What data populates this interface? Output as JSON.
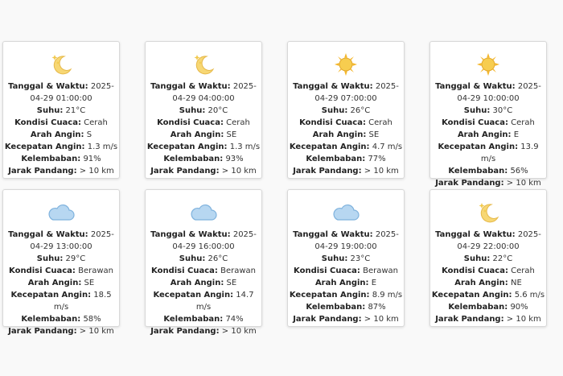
{
  "labels": {
    "datetime": "Tanggal & Waktu:",
    "temp": "Suhu:",
    "condition": "Kondisi Cuaca:",
    "wind_dir": "Arah Angin:",
    "wind_speed": "Kecepatan Angin:",
    "humidity": "Kelembaban:",
    "visibility": "Jarak Pandang:"
  },
  "forecasts": [
    {
      "icon": "moon-icon",
      "datetime": "2025-04-29 01:00:00",
      "temp": "21°C",
      "condition": "Cerah",
      "wind_dir": "S",
      "wind_speed": "1.3 m/s",
      "humidity": "91%",
      "visibility": "> 10 km"
    },
    {
      "icon": "moon-icon",
      "datetime": "2025-04-29 04:00:00",
      "temp": "20°C",
      "condition": "Cerah",
      "wind_dir": "SE",
      "wind_speed": "1.3 m/s",
      "humidity": "93%",
      "visibility": "> 10 km"
    },
    {
      "icon": "sun-icon",
      "datetime": "2025-04-29 07:00:00",
      "temp": "26°C",
      "condition": "Cerah",
      "wind_dir": "SE",
      "wind_speed": "4.7 m/s",
      "humidity": "77%",
      "visibility": "> 10 km"
    },
    {
      "icon": "sun-icon",
      "datetime": "2025-04-29 10:00:00",
      "temp": "30°C",
      "condition": "Cerah",
      "wind_dir": "E",
      "wind_speed": "13.9 m/s",
      "humidity": "56%",
      "visibility": "> 10 km"
    },
    {
      "icon": "cloud-icon",
      "datetime": "2025-04-29 13:00:00",
      "temp": "29°C",
      "condition": "Berawan",
      "wind_dir": "SE",
      "wind_speed": "18.5 m/s",
      "humidity": "58%",
      "visibility": "> 10 km"
    },
    {
      "icon": "cloud-icon",
      "datetime": "2025-04-29 16:00:00",
      "temp": "26°C",
      "condition": "Berawan",
      "wind_dir": "SE",
      "wind_speed": "14.7 m/s",
      "humidity": "74%",
      "visibility": "> 10 km"
    },
    {
      "icon": "cloud-icon",
      "datetime": "2025-04-29 19:00:00",
      "temp": "23°C",
      "condition": "Berawan",
      "wind_dir": "E",
      "wind_speed": "8.9 m/s",
      "humidity": "87%",
      "visibility": "> 10 km"
    },
    {
      "icon": "moon-icon",
      "datetime": "2025-04-29 22:00:00",
      "temp": "22°C",
      "condition": "Cerah",
      "wind_dir": "NE",
      "wind_speed": "5.6 m/s",
      "humidity": "90%",
      "visibility": "> 10 km"
    }
  ]
}
